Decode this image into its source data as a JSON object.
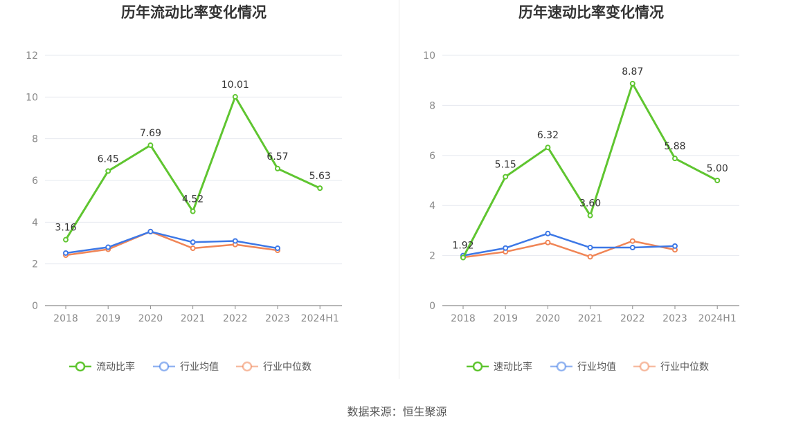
{
  "colors": {
    "main": "#5fc530",
    "avg": "#3d78e6",
    "median": "#f08556"
  },
  "source": "数据来源：恒生聚源",
  "chart_data": [
    {
      "type": "line",
      "title": "历年流动比率变化情况",
      "categories": [
        "2018",
        "2019",
        "2020",
        "2021",
        "2022",
        "2023",
        "2024H1"
      ],
      "ylim": [
        0,
        12
      ],
      "yticks": [
        0,
        2,
        4,
        6,
        8,
        10,
        12
      ],
      "grid": true,
      "legend_position": "bottom",
      "series": [
        {
          "name": "流动比率",
          "values": [
            3.16,
            6.45,
            7.69,
            4.52,
            10.01,
            6.57,
            5.63
          ],
          "labels": [
            "3.16",
            "6.45",
            "7.69",
            "4.52",
            "10.01",
            "6.57",
            "5.63"
          ]
        },
        {
          "name": "行业均值",
          "values": [
            2.52,
            2.8,
            3.55,
            3.04,
            3.1,
            2.75,
            null
          ]
        },
        {
          "name": "行业中位数",
          "values": [
            2.42,
            2.7,
            3.55,
            2.75,
            2.93,
            2.65,
            null
          ]
        }
      ]
    },
    {
      "type": "line",
      "title": "历年速动比率变化情况",
      "categories": [
        "2018",
        "2019",
        "2020",
        "2021",
        "2022",
        "2023",
        "2024H1"
      ],
      "ylim": [
        0,
        10
      ],
      "yticks": [
        0,
        2,
        4,
        6,
        8,
        10
      ],
      "grid": true,
      "legend_position": "bottom",
      "series": [
        {
          "name": "速动比率",
          "values": [
            1.92,
            5.15,
            6.32,
            3.6,
            8.87,
            5.88,
            5.0
          ],
          "labels": [
            "1.92",
            "5.15",
            "6.32",
            "3.60",
            "8.87",
            "5.88",
            "5.00"
          ]
        },
        {
          "name": "行业均值",
          "values": [
            2.0,
            2.3,
            2.88,
            2.32,
            2.32,
            2.38,
            null
          ]
        },
        {
          "name": "行业中位数",
          "values": [
            1.93,
            2.15,
            2.52,
            1.95,
            2.58,
            2.23,
            null
          ]
        }
      ]
    }
  ]
}
